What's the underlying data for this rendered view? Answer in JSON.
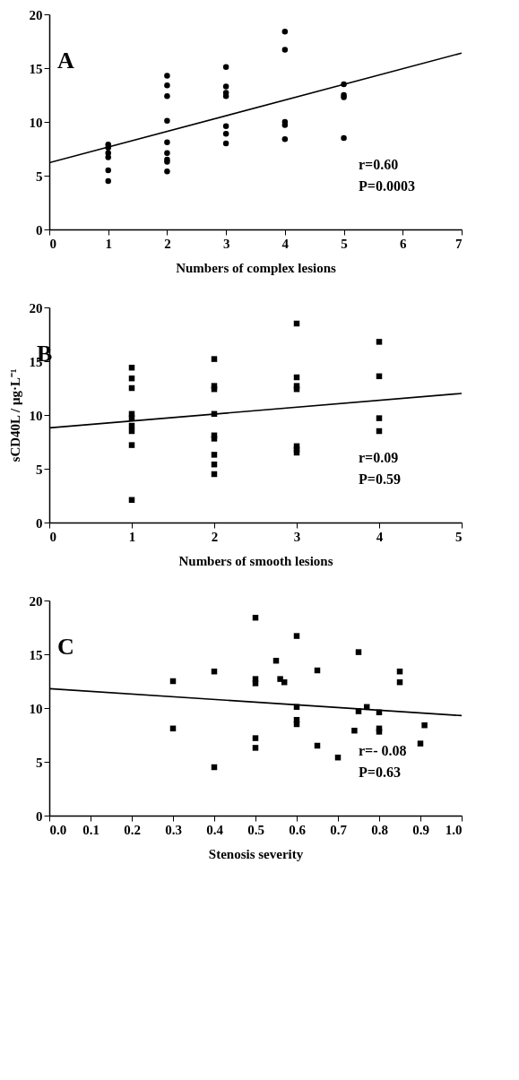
{
  "chart_data": [
    {
      "type": "scatter",
      "title": "A",
      "xlabel": "Numbers of complex lesions",
      "xlim": [
        0,
        7
      ],
      "xticks": [
        0,
        1,
        2,
        3,
        4,
        5,
        6,
        7
      ],
      "ylim": [
        0,
        20
      ],
      "yticks": [
        0,
        5,
        10,
        15,
        20
      ],
      "grid": false,
      "marker": "circle",
      "annotations": [
        "r=0.60",
        "P=0.0003"
      ],
      "series": [
        {
          "color": "#000000",
          "x": [
            1,
            1,
            1,
            1,
            1,
            1,
            2,
            2,
            2,
            2,
            2,
            2,
            2,
            2,
            2,
            3,
            3,
            3,
            3,
            3,
            3,
            3,
            4,
            4,
            4,
            4,
            4,
            5,
            5,
            5,
            5
          ],
          "values": [
            7.9,
            7.6,
            7.1,
            6.7,
            5.5,
            4.5,
            14.3,
            13.4,
            12.4,
            10.1,
            8.1,
            7.1,
            6.5,
            6.3,
            5.4,
            15.1,
            13.3,
            12.7,
            12.4,
            9.6,
            8.9,
            8.0,
            18.4,
            16.7,
            10.0,
            9.7,
            8.4,
            13.5,
            12.5,
            12.3,
            8.5
          ]
        },
        {
          "type": "line",
          "marker": "none",
          "color": "#000000",
          "x": [
            0,
            7
          ],
          "values": [
            6.2,
            16.4
          ]
        }
      ]
    },
    {
      "type": "scatter",
      "title": "B",
      "xlabel": "Numbers of smooth lesions",
      "ylabel": "sCD40L / μg·L⁻¹",
      "xlim": [
        0,
        5
      ],
      "xticks": [
        0,
        1,
        2,
        3,
        4,
        5
      ],
      "ylim": [
        0,
        20
      ],
      "yticks": [
        0,
        5,
        10,
        15,
        20
      ],
      "grid": false,
      "marker": "square",
      "annotations": [
        "r=0.09",
        "P=0.59"
      ],
      "series": [
        {
          "color": "#000000",
          "x": [
            1,
            1,
            1,
            1,
            1,
            1,
            1,
            1,
            1,
            2,
            2,
            2,
            2,
            2,
            2,
            2,
            2,
            2,
            3,
            3,
            3,
            3,
            3,
            3,
            3,
            4,
            4,
            4,
            4
          ],
          "values": [
            14.4,
            13.4,
            12.5,
            10.1,
            9.7,
            9.0,
            8.5,
            7.2,
            2.1,
            15.2,
            12.7,
            12.4,
            10.1,
            8.1,
            7.8,
            6.3,
            5.4,
            4.5,
            18.5,
            13.5,
            12.7,
            12.4,
            7.1,
            6.8,
            6.5,
            16.8,
            13.6,
            9.7,
            8.5
          ]
        },
        {
          "type": "line",
          "marker": "none",
          "color": "#000000",
          "x": [
            0,
            5
          ],
          "values": [
            8.8,
            12.0
          ]
        }
      ]
    },
    {
      "type": "scatter",
      "title": "C",
      "xlabel": "Stenosis severity",
      "xlim": [
        0,
        1
      ],
      "xticks": [
        {
          "value": 0,
          "label": "0.0"
        },
        0.1,
        0.2,
        0.3,
        0.4,
        0.5,
        0.6,
        0.7,
        0.8,
        0.9,
        {
          "value": 1,
          "label": "1.0"
        }
      ],
      "ylim": [
        0,
        20
      ],
      "yticks": [
        0,
        5,
        10,
        15,
        20
      ],
      "grid": false,
      "marker": "square",
      "annotations": [
        "r=- 0.08",
        "P=0.63"
      ],
      "series": [
        {
          "color": "#000000",
          "x": [
            0.3,
            0.3,
            0.4,
            0.4,
            0.5,
            0.5,
            0.5,
            0.5,
            0.5,
            0.55,
            0.56,
            0.57,
            0.6,
            0.6,
            0.6,
            0.6,
            0.65,
            0.65,
            0.7,
            0.74,
            0.75,
            0.75,
            0.77,
            0.8,
            0.8,
            0.8,
            0.85,
            0.85,
            0.9,
            0.91
          ],
          "values": [
            12.5,
            8.1,
            13.4,
            4.5,
            18.4,
            12.7,
            12.3,
            7.2,
            6.3,
            14.4,
            12.7,
            12.4,
            16.7,
            10.1,
            8.9,
            8.5,
            13.5,
            6.5,
            5.4,
            7.9,
            15.2,
            9.7,
            10.1,
            9.6,
            8.1,
            7.8,
            13.4,
            12.4,
            6.7,
            8.4
          ]
        },
        {
          "type": "line",
          "marker": "none",
          "color": "#000000",
          "x": [
            0,
            1
          ],
          "values": [
            11.8,
            9.3
          ]
        }
      ]
    }
  ]
}
